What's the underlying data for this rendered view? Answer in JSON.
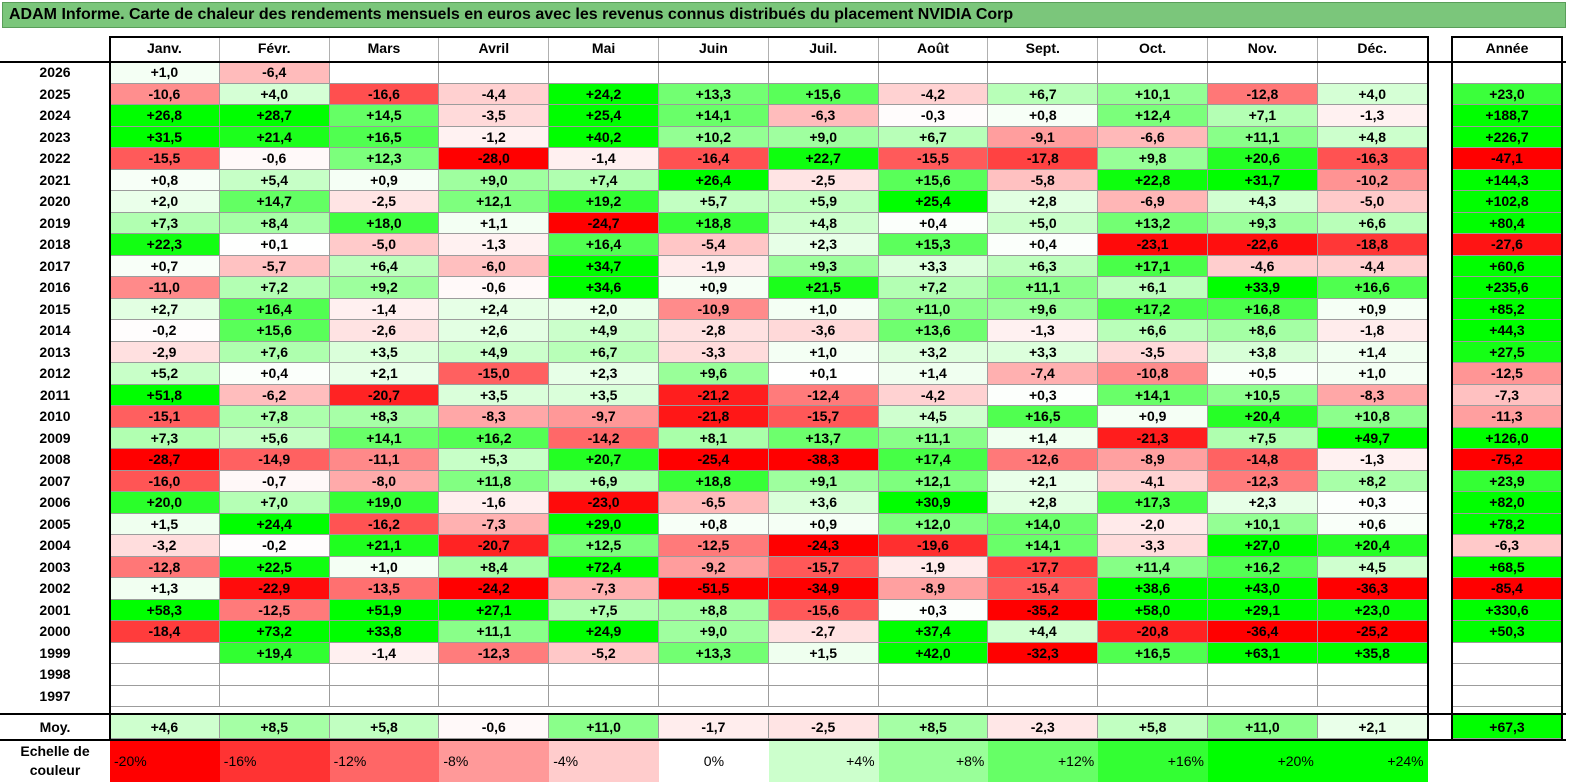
{
  "title": "ADAM Informe. Carte de chaleur des rendements mensuels en euros avec les revenus connus distribués du placement NVIDIA Corp",
  "colors": {
    "title_bg": "#7bc67b",
    "negative_max": "#ff0000",
    "neutral": "#ffffff",
    "positive_max": "#00ff00"
  },
  "chart_data": {
    "type": "heatmap",
    "months": [
      "Janv.",
      "Févr.",
      "Mars",
      "Avril",
      "Mai",
      "Juin",
      "Juil.",
      "Août",
      "Sept.",
      "Oct.",
      "Nov.",
      "Déc."
    ],
    "year_header": "Année",
    "rows": [
      {
        "year": "2026",
        "months": [
          "+1,0",
          "-6,4",
          "",
          "",
          "",
          "",
          "",
          "",
          "",
          "",
          "",
          ""
        ],
        "annual": ""
      },
      {
        "year": "2025",
        "months": [
          "-10,6",
          "+4,0",
          "-16,6",
          "-4,4",
          "+24,2",
          "+13,3",
          "+15,6",
          "-4,2",
          "+6,7",
          "+10,1",
          "-12,8",
          "+4,0"
        ],
        "annual": "+23,0"
      },
      {
        "year": "2024",
        "months": [
          "+26,8",
          "+28,7",
          "+14,5",
          "-3,5",
          "+25,4",
          "+14,1",
          "-6,3",
          "-0,3",
          "+0,8",
          "+12,4",
          "+7,1",
          "-1,3"
        ],
        "annual": "+188,7"
      },
      {
        "year": "2023",
        "months": [
          "+31,5",
          "+21,4",
          "+16,5",
          "-1,2",
          "+40,2",
          "+10,2",
          "+9,0",
          "+6,7",
          "-9,1",
          "-6,6",
          "+11,1",
          "+4,8"
        ],
        "annual": "+226,7"
      },
      {
        "year": "2022",
        "months": [
          "-15,5",
          "-0,6",
          "+12,3",
          "-28,0",
          "-1,4",
          "-16,4",
          "+22,7",
          "-15,5",
          "-17,8",
          "+9,8",
          "+20,6",
          "-16,3"
        ],
        "annual": "-47,1"
      },
      {
        "year": "2021",
        "months": [
          "+0,8",
          "+5,4",
          "+0,9",
          "+9,0",
          "+7,4",
          "+26,4",
          "-2,5",
          "+15,6",
          "-5,8",
          "+22,8",
          "+31,7",
          "-10,2"
        ],
        "annual": "+144,3"
      },
      {
        "year": "2020",
        "months": [
          "+2,0",
          "+14,7",
          "-2,5",
          "+12,1",
          "+19,2",
          "+5,7",
          "+5,9",
          "+25,4",
          "+2,8",
          "-6,9",
          "+4,3",
          "-5,0"
        ],
        "annual": "+102,8"
      },
      {
        "year": "2019",
        "months": [
          "+7,3",
          "+8,4",
          "+18,0",
          "+1,1",
          "-24,7",
          "+18,8",
          "+4,8",
          "+0,4",
          "+5,0",
          "+13,2",
          "+9,3",
          "+6,6"
        ],
        "annual": "+80,4"
      },
      {
        "year": "2018",
        "months": [
          "+22,3",
          "+0,1",
          "-5,0",
          "-1,3",
          "+16,4",
          "-5,4",
          "+2,3",
          "+15,3",
          "+0,4",
          "-23,1",
          "-22,6",
          "-18,8"
        ],
        "annual": "-27,6"
      },
      {
        "year": "2017",
        "months": [
          "+0,7",
          "-5,7",
          "+6,4",
          "-6,0",
          "+34,7",
          "-1,9",
          "+9,3",
          "+3,3",
          "+6,3",
          "+17,1",
          "-4,6",
          "-4,4"
        ],
        "annual": "+60,6"
      },
      {
        "year": "2016",
        "months": [
          "-11,0",
          "+7,2",
          "+9,2",
          "-0,6",
          "+34,6",
          "+0,9",
          "+21,5",
          "+7,2",
          "+11,1",
          "+6,1",
          "+33,9",
          "+16,6"
        ],
        "annual": "+235,6"
      },
      {
        "year": "2015",
        "months": [
          "+2,7",
          "+16,4",
          "-1,4",
          "+2,4",
          "+2,0",
          "-10,9",
          "+1,0",
          "+11,0",
          "+9,6",
          "+17,2",
          "+16,8",
          "+0,9"
        ],
        "annual": "+85,2"
      },
      {
        "year": "2014",
        "months": [
          "-0,2",
          "+15,6",
          "-2,6",
          "+2,6",
          "+4,9",
          "-2,8",
          "-3,6",
          "+13,6",
          "-1,3",
          "+6,6",
          "+8,6",
          "-1,8"
        ],
        "annual": "+44,3"
      },
      {
        "year": "2013",
        "months": [
          "-2,9",
          "+7,6",
          "+3,5",
          "+4,9",
          "+6,7",
          "-3,3",
          "+1,0",
          "+3,2",
          "+3,3",
          "-3,5",
          "+3,8",
          "+1,4"
        ],
        "annual": "+27,5"
      },
      {
        "year": "2012",
        "months": [
          "+5,2",
          "+0,4",
          "+2,1",
          "-15,0",
          "+2,3",
          "+9,6",
          "+0,1",
          "+1,4",
          "-7,4",
          "-10,8",
          "+0,5",
          "+1,0"
        ],
        "annual": "-12,5"
      },
      {
        "year": "2011",
        "months": [
          "+51,8",
          "-6,2",
          "-20,7",
          "+3,5",
          "+3,5",
          "-21,2",
          "-12,4",
          "-4,2",
          "+0,3",
          "+14,1",
          "+10,5",
          "-8,3"
        ],
        "annual": "-7,3"
      },
      {
        "year": "2010",
        "months": [
          "-15,1",
          "+7,8",
          "+8,3",
          "-8,3",
          "-9,7",
          "-21,8",
          "-15,7",
          "+4,5",
          "+16,5",
          "+0,9",
          "+20,4",
          "+10,8"
        ],
        "annual": "-11,3"
      },
      {
        "year": "2009",
        "months": [
          "+7,3",
          "+5,6",
          "+14,1",
          "+16,2",
          "-14,2",
          "+8,1",
          "+13,7",
          "+11,1",
          "+1,4",
          "-21,3",
          "+7,5",
          "+49,7"
        ],
        "annual": "+126,0"
      },
      {
        "year": "2008",
        "months": [
          "-28,7",
          "-14,9",
          "-11,1",
          "+5,3",
          "+20,7",
          "-25,4",
          "-38,3",
          "+17,4",
          "-12,6",
          "-8,9",
          "-14,8",
          "-1,3"
        ],
        "annual": "-75,2"
      },
      {
        "year": "2007",
        "months": [
          "-16,0",
          "-0,7",
          "-8,0",
          "+11,8",
          "+6,9",
          "+18,8",
          "+9,1",
          "+12,1",
          "+2,1",
          "-4,1",
          "-12,3",
          "+8,2"
        ],
        "annual": "+23,9"
      },
      {
        "year": "2006",
        "months": [
          "+20,0",
          "+7,0",
          "+19,0",
          "-1,6",
          "-23,0",
          "-6,5",
          "+3,6",
          "+30,9",
          "+2,8",
          "+17,3",
          "+2,3",
          "+0,3"
        ],
        "annual": "+82,0"
      },
      {
        "year": "2005",
        "months": [
          "+1,5",
          "+24,4",
          "-16,2",
          "-7,3",
          "+29,0",
          "+0,8",
          "+0,9",
          "+12,0",
          "+14,0",
          "-2,0",
          "+10,1",
          "+0,6"
        ],
        "annual": "+78,2"
      },
      {
        "year": "2004",
        "months": [
          "-3,2",
          "-0,2",
          "+21,1",
          "-20,7",
          "+12,5",
          "-12,5",
          "-24,3",
          "-19,6",
          "+14,1",
          "-3,3",
          "+27,0",
          "+20,4"
        ],
        "annual": "-6,3"
      },
      {
        "year": "2003",
        "months": [
          "-12,8",
          "+22,5",
          "+1,0",
          "+8,4",
          "+72,4",
          "-9,2",
          "-15,7",
          "-1,9",
          "-17,7",
          "+11,4",
          "+16,2",
          "+4,5"
        ],
        "annual": "+68,5"
      },
      {
        "year": "2002",
        "months": [
          "+1,3",
          "-22,9",
          "-13,5",
          "-24,2",
          "-7,3",
          "-51,5",
          "-34,9",
          "-8,9",
          "-15,4",
          "+38,6",
          "+43,0",
          "-36,3"
        ],
        "annual": "-85,4"
      },
      {
        "year": "2001",
        "months": [
          "+58,3",
          "-12,5",
          "+51,9",
          "+27,1",
          "+7,5",
          "+8,8",
          "-15,6",
          "+0,3",
          "-35,2",
          "+58,0",
          "+29,1",
          "+23,0"
        ],
        "annual": "+330,6"
      },
      {
        "year": "2000",
        "months": [
          "-18,4",
          "+73,2",
          "+33,8",
          "+11,1",
          "+24,9",
          "+9,0",
          "-2,7",
          "+37,4",
          "+4,4",
          "-20,8",
          "-36,4",
          "-25,2"
        ],
        "annual": "+50,3"
      },
      {
        "year": "1999",
        "months": [
          "",
          "+19,4",
          "-1,4",
          "-12,3",
          "-5,2",
          "+13,3",
          "+1,5",
          "+42,0",
          "-32,3",
          "+16,5",
          "+63,1",
          "+35,8"
        ],
        "annual": ""
      },
      {
        "year": "1998",
        "months": [
          "",
          "",
          "",
          "",
          "",
          "",
          "",
          "",
          "",
          "",
          "",
          ""
        ],
        "annual": ""
      },
      {
        "year": "1997",
        "months": [
          "",
          "",
          "",
          "",
          "",
          "",
          "",
          "",
          "",
          "",
          "",
          ""
        ],
        "annual": ""
      }
    ],
    "average": {
      "label": "Moy.",
      "months": [
        "+4,6",
        "+8,5",
        "+5,8",
        "-0,6",
        "+11,0",
        "-1,7",
        "-2,5",
        "+8,5",
        "-2,3",
        "+5,8",
        "+11,0",
        "+2,1"
      ],
      "annual": "+67,3"
    },
    "scale": {
      "label": "Echelle de couleur",
      "steps": [
        "-20%",
        "-16%",
        "-12%",
        "-8%",
        "-4%",
        "0%",
        "+4%",
        "+8%",
        "+12%",
        "+16%",
        "+20%",
        "+24%"
      ]
    }
  }
}
